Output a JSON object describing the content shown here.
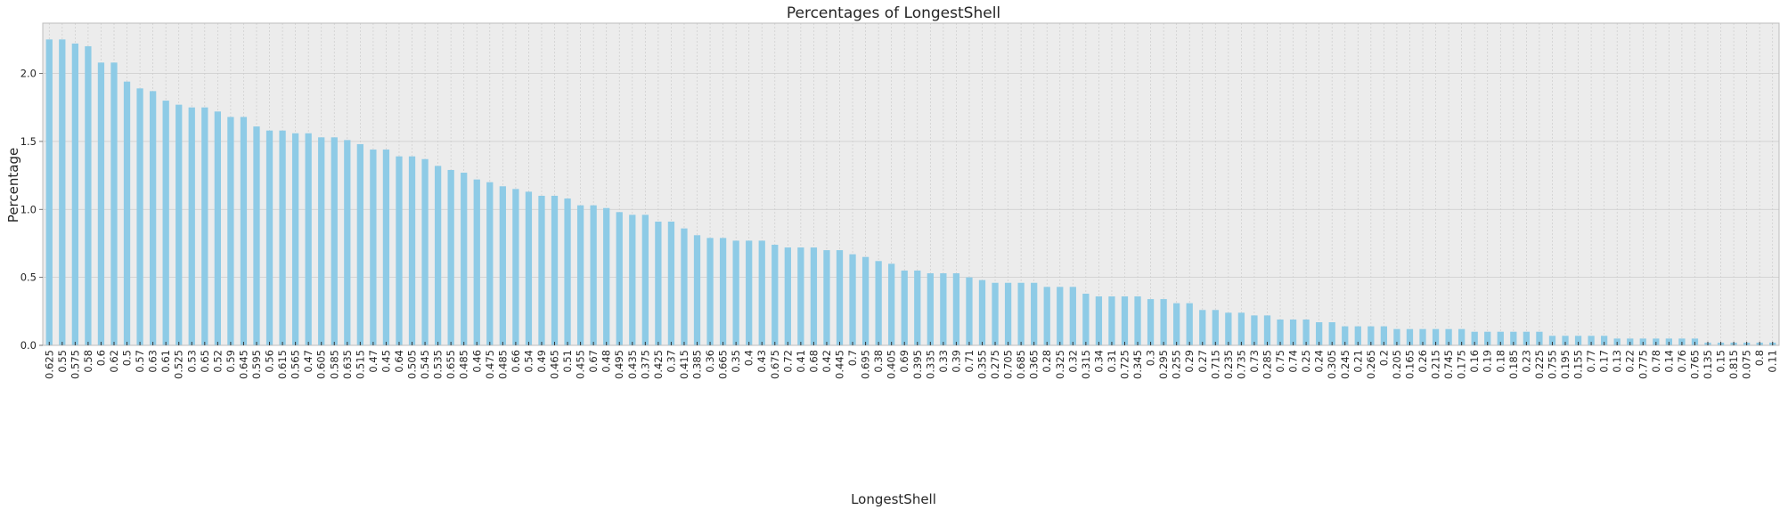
{
  "chart_data": {
    "type": "bar",
    "title": "Percentages of LongestShell",
    "xlabel": "LongestShell",
    "ylabel": "Percentage",
    "ylim": [
      0,
      2.37
    ],
    "yticks": [
      0.0,
      0.5,
      1.0,
      1.5,
      2.0
    ],
    "ytick_labels": [
      "0.0",
      "0.5",
      "1.0",
      "1.5",
      "2.0"
    ],
    "grid": true,
    "bar_color": "#8ecbe6",
    "plot_background": "#ececec",
    "grid_color": "#cccccc",
    "categories": [
      "0.625",
      "0.55",
      "0.575",
      "0.58",
      "0.6",
      "0.62",
      "0.5",
      "0.57",
      "0.63",
      "0.61",
      "0.525",
      "0.53",
      "0.65",
      "0.52",
      "0.59",
      "0.645",
      "0.595",
      "0.56",
      "0.615",
      "0.565",
      "0.47",
      "0.605",
      "0.585",
      "0.635",
      "0.515",
      "0.47",
      "0.45",
      "0.64",
      "0.505",
      "0.545",
      "0.535",
      "0.655",
      "0.485",
      "0.46",
      "0.475",
      "0.485",
      "0.66",
      "0.54",
      "0.49",
      "0.465",
      "0.51",
      "0.455",
      "0.67",
      "0.48",
      "0.495",
      "0.435",
      "0.375",
      "0.425",
      "0.37",
      "0.415",
      "0.385",
      "0.36",
      "0.665",
      "0.35",
      "0.4",
      "0.43",
      "0.675",
      "0.72",
      "0.41",
      "0.68",
      "0.42",
      "0.445",
      "0.7",
      "0.695",
      "0.38",
      "0.405",
      "0.69",
      "0.395",
      "0.335",
      "0.33",
      "0.39",
      "0.71",
      "0.355",
      "0.275",
      "0.705",
      "0.685",
      "0.365",
      "0.28",
      "0.325",
      "0.32",
      "0.315",
      "0.34",
      "0.31",
      "0.725",
      "0.345",
      "0.3",
      "0.295",
      "0.255",
      "0.29",
      "0.27",
      "0.715",
      "0.235",
      "0.735",
      "0.73",
      "0.285",
      "0.75",
      "0.74",
      "0.25",
      "0.24",
      "0.305",
      "0.245",
      "0.21",
      "0.265",
      "0.2",
      "0.205",
      "0.165",
      "0.26",
      "0.215",
      "0.745",
      "0.175",
      "0.16",
      "0.19",
      "0.18",
      "0.185",
      "0.23",
      "0.225",
      "0.755",
      "0.195",
      "0.155",
      "0.77",
      "0.17",
      "0.13",
      "0.22",
      "0.775",
      "0.78",
      "0.14",
      "0.76",
      "0.765",
      "0.135",
      "0.15",
      "0.815",
      "0.075",
      "0.8",
      "0.11"
    ],
    "values": [
      2.25,
      2.25,
      2.22,
      2.2,
      2.08,
      2.08,
      1.94,
      1.89,
      1.87,
      1.8,
      1.77,
      1.75,
      1.75,
      1.72,
      1.68,
      1.68,
      1.61,
      1.58,
      1.58,
      1.56,
      1.56,
      1.53,
      1.53,
      1.51,
      1.48,
      1.44,
      1.44,
      1.39,
      1.39,
      1.37,
      1.32,
      1.29,
      1.27,
      1.22,
      1.2,
      1.17,
      1.15,
      1.13,
      1.1,
      1.1,
      1.08,
      1.03,
      1.03,
      1.01,
      0.98,
      0.96,
      0.96,
      0.91,
      0.91,
      0.86,
      0.81,
      0.79,
      0.79,
      0.77,
      0.77,
      0.77,
      0.74,
      0.72,
      0.72,
      0.72,
      0.7,
      0.7,
      0.67,
      0.65,
      0.62,
      0.6,
      0.55,
      0.55,
      0.53,
      0.53,
      0.53,
      0.5,
      0.48,
      0.46,
      0.46,
      0.46,
      0.46,
      0.43,
      0.43,
      0.43,
      0.38,
      0.36,
      0.36,
      0.36,
      0.36,
      0.34,
      0.34,
      0.31,
      0.31,
      0.26,
      0.26,
      0.24,
      0.24,
      0.22,
      0.22,
      0.19,
      0.19,
      0.19,
      0.17,
      0.17,
      0.14,
      0.14,
      0.14,
      0.14,
      0.12,
      0.12,
      0.12,
      0.12,
      0.12,
      0.12,
      0.1,
      0.1,
      0.1,
      0.1,
      0.1,
      0.1,
      0.07,
      0.07,
      0.07,
      0.07,
      0.07,
      0.05,
      0.05,
      0.05,
      0.05,
      0.05,
      0.05,
      0.05,
      0.02,
      0.02,
      0.02,
      0.02,
      0.02,
      0.02
    ]
  }
}
